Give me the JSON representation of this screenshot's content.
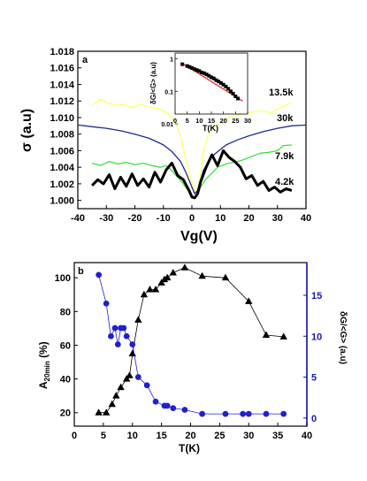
{
  "chart_data": [
    {
      "type": "line",
      "panel_label": "a",
      "xlabel": "Vg(V)",
      "ylabel": "σ (a.u)",
      "xlim": [
        -40,
        40
      ],
      "ylim": [
        0.999,
        1.018
      ],
      "xticks": [
        "-40",
        "-30",
        "-20",
        "-10",
        "0",
        "10",
        "20",
        "30",
        "40"
      ],
      "yticks": [
        "1.000",
        "1.002",
        "1.004",
        "1.006",
        "1.008",
        "1.010",
        "1.012",
        "1.014",
        "1.016",
        "1.018"
      ],
      "series": [
        {
          "name": "13.5k",
          "color": "#ffff66",
          "x": [
            -35,
            -32,
            -30,
            -27,
            -24,
            -21,
            -18,
            -15,
            -12,
            -10,
            -8,
            -6,
            -4,
            -2,
            0,
            1,
            2,
            3,
            4,
            6,
            8,
            10,
            13,
            16,
            20,
            24,
            28,
            31,
            33,
            35
          ],
          "y": [
            1.0115,
            1.0122,
            1.0118,
            1.0115,
            1.0116,
            1.0112,
            1.0116,
            1.0113,
            1.0111,
            1.0108,
            1.0104,
            1.0096,
            1.0078,
            1.0048,
            1.0022,
            1.001,
            1.0014,
            1.003,
            1.0058,
            1.0082,
            1.009,
            1.0093,
            1.01,
            1.0103,
            1.0106,
            1.0108,
            1.0106,
            1.0112,
            1.0115,
            1.0118
          ]
        },
        {
          "name": "30k",
          "color": "#1f2a8c",
          "x": [
            -40,
            -35,
            -30,
            -25,
            -20,
            -15,
            -10,
            -7,
            -4,
            -2,
            0,
            1,
            2,
            3,
            4,
            6,
            8,
            12,
            16,
            20,
            25,
            30,
            35,
            40
          ],
          "y": [
            1.0091,
            1.0089,
            1.0087,
            1.0084,
            1.008,
            1.0075,
            1.0067,
            1.0059,
            1.0047,
            1.0033,
            1.0016,
            1.0008,
            1.0012,
            1.0024,
            1.0036,
            1.0048,
            1.0056,
            1.0067,
            1.0073,
            1.0078,
            1.0083,
            1.0087,
            1.009,
            1.0091
          ]
        },
        {
          "name": "7.9k",
          "color": "#44dd44",
          "x": [
            -35,
            -32,
            -29,
            -26,
            -23,
            -20,
            -17,
            -14,
            -11,
            -9,
            -7,
            -5,
            -3,
            -1,
            0,
            1,
            2,
            3,
            5,
            7,
            9,
            12,
            15,
            18,
            21,
            24,
            27,
            30,
            32,
            35
          ],
          "y": [
            1.0045,
            1.0042,
            1.0047,
            1.0044,
            1.0046,
            1.0043,
            1.0045,
            1.0042,
            1.004,
            1.0042,
            1.0036,
            1.0028,
            1.002,
            1.001,
            1.0006,
            1.0004,
            1.0008,
            1.0016,
            1.0026,
            1.0033,
            1.004,
            1.0044,
            1.0046,
            1.0049,
            1.0053,
            1.0057,
            1.0058,
            1.006,
            1.0066,
            1.0067
          ]
        },
        {
          "name": "4.2k",
          "color": "#000000",
          "x": [
            -35,
            -33,
            -31,
            -29,
            -27,
            -25,
            -23,
            -21,
            -19,
            -17,
            -15,
            -13,
            -11,
            -9,
            -7,
            -5,
            -3,
            -1,
            0,
            1,
            2,
            3,
            5,
            7,
            9,
            11,
            13,
            15,
            17,
            19,
            21,
            23,
            25,
            27,
            29,
            31,
            33,
            35
          ],
          "y": [
            1.0018,
            1.0025,
            1.002,
            1.0031,
            1.0014,
            1.0028,
            1.0017,
            1.0032,
            1.0018,
            1.0026,
            1.0016,
            1.0034,
            1.0022,
            1.0037,
            1.0045,
            1.003,
            1.0025,
            1.0012,
            1.0004,
            1.0003,
            1.0008,
            1.0022,
            1.004,
            1.0055,
            1.0042,
            1.006,
            1.0052,
            1.0047,
            1.004,
            1.0026,
            1.003,
            1.0018,
            1.0023,
            1.0012,
            1.0016,
            1.001,
            1.0014,
            1.0012
          ]
        }
      ],
      "inset": {
        "type": "scatter",
        "xlabel": "T(K)",
        "ylabel": "δG/<G> (a.u)",
        "xlim": [
          0,
          30
        ],
        "log_y": true,
        "xticks": [
          "0",
          "5",
          "10",
          "15",
          "20",
          "25",
          "30"
        ],
        "yticks": [
          "0.01",
          "0.1",
          "1"
        ],
        "points": {
          "x": [
            3,
            5,
            6,
            7,
            8,
            9,
            10,
            11,
            12,
            13,
            14,
            15,
            16,
            17,
            18,
            19,
            20,
            21,
            22,
            23,
            24,
            25,
            26
          ],
          "y": [
            0.68,
            0.6,
            0.56,
            0.52,
            0.48,
            0.45,
            0.42,
            0.38,
            0.36,
            0.33,
            0.3,
            0.27,
            0.25,
            0.22,
            0.2,
            0.18,
            0.16,
            0.14,
            0.12,
            0.1,
            0.085,
            0.07,
            0.06
          ]
        },
        "fit": {
          "color": "#e02020",
          "x": [
            3,
            28
          ],
          "y": [
            0.72,
            0.05
          ]
        }
      }
    },
    {
      "type": "scatter",
      "panel_label": "b",
      "xlabel": "T(K)",
      "ylabel": "A20min (%)",
      "ylabel_main": "A",
      "ylabel_sub": "20min",
      "ylabel_rest": " (%)",
      "y2label": "δG/<G> (a.u)",
      "xlim": [
        0,
        40
      ],
      "ylim": [
        12,
        109
      ],
      "y2lim": [
        -1,
        19
      ],
      "xticks": [
        "0",
        "5",
        "10",
        "15",
        "20",
        "25",
        "30",
        "35",
        "40"
      ],
      "yticks": [
        "20",
        "40",
        "60",
        "80",
        "100"
      ],
      "y2ticks": [
        "0",
        "5",
        "10",
        "15"
      ],
      "series": [
        {
          "name": "A20min",
          "axis": "left",
          "marker": "triangle",
          "color": "#000000",
          "x": [
            4.2,
            5.5,
            6.5,
            7.2,
            8,
            9,
            9.5,
            10,
            11,
            12,
            13,
            14,
            15,
            15.5,
            16,
            17,
            19,
            22,
            26,
            30,
            33,
            36
          ],
          "y": [
            20,
            20,
            25,
            30,
            35,
            40,
            42,
            55,
            75,
            90,
            93,
            93,
            97,
            99,
            100,
            103,
            106,
            101,
            100,
            86,
            66,
            65
          ]
        },
        {
          "name": "δG/<G>",
          "axis": "right",
          "marker": "circle",
          "color": "#2020cc",
          "x": [
            4.2,
            5.5,
            6.3,
            7,
            7.5,
            8,
            8.5,
            9,
            10,
            11,
            12.5,
            14,
            15.5,
            16,
            17,
            19,
            22,
            26,
            29,
            30,
            33,
            36
          ],
          "y": [
            17.5,
            14,
            10,
            11,
            9,
            11,
            11,
            10,
            9,
            5,
            4,
            2,
            1.5,
            1.5,
            1.2,
            1,
            0.5,
            0.5,
            0.5,
            0.5,
            0.5,
            0.5
          ]
        }
      ]
    }
  ],
  "labels": {
    "curve_135": "13.5k",
    "curve_30": "30k",
    "curve_79": "7.9k",
    "curve_42": "4.2k"
  }
}
